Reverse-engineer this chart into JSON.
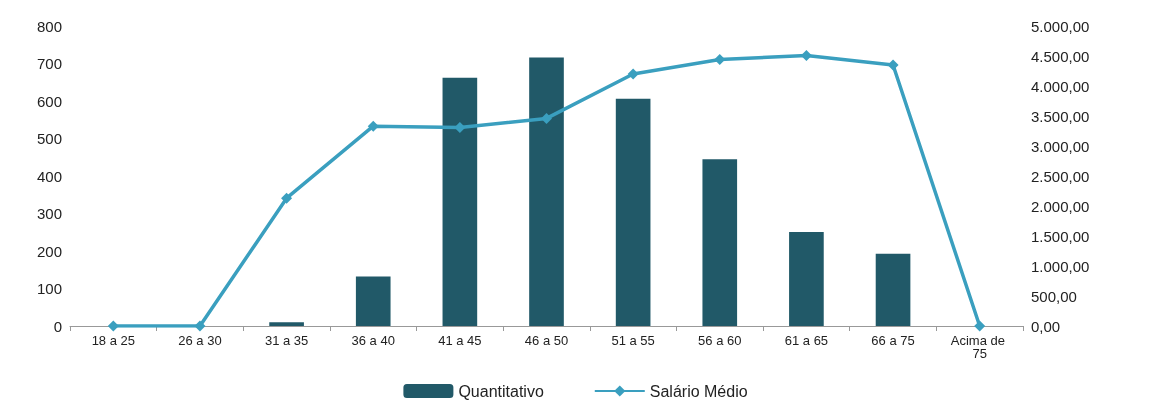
{
  "chart_data": {
    "type": "bar",
    "categories": [
      "18 a 25",
      "26 a 30",
      "31 a 35",
      "36 a 40",
      "41 a 45",
      "46 a 50",
      "51 a 55",
      "56 a 60",
      "61 a 65",
      "66 a 75",
      "Acima de 75"
    ],
    "series": [
      {
        "name": "Quantitativo",
        "color": "#215968",
        "values": [
          0,
          0,
          10,
          132,
          662,
          716,
          606,
          445,
          251,
          193,
          0
        ]
      },
      {
        "name": "Salário Médio",
        "type": "line",
        "axis": "y2",
        "color": "#3a9fbf",
        "marker": "diamond",
        "values": [
          0,
          0,
          2130,
          3330,
          3310,
          3460,
          4200,
          4440,
          4510,
          4350,
          0
        ]
      }
    ],
    "ylim": [
      0,
      800
    ],
    "yticks": [
      0,
      100,
      200,
      300,
      400,
      500,
      600,
      700,
      800
    ],
    "y2lim": [
      0,
      5000
    ],
    "y2ticks": [
      {
        "value": 0,
        "label": "0,00"
      },
      {
        "value": 500,
        "label": "500,00"
      },
      {
        "value": 1000,
        "label": "1.000,00"
      },
      {
        "value": 1500,
        "label": "1.500,00"
      },
      {
        "value": 2000,
        "label": "2.000,00"
      },
      {
        "value": 2500,
        "label": "2.500,00"
      },
      {
        "value": 3000,
        "label": "3.000,00"
      },
      {
        "value": 3500,
        "label": "3.500,00"
      },
      {
        "value": 4000,
        "label": "4.000,00"
      },
      {
        "value": 4500,
        "label": "4.500,00"
      },
      {
        "value": 5000,
        "label": "5.000,00"
      }
    ],
    "legend": "bottom"
  }
}
